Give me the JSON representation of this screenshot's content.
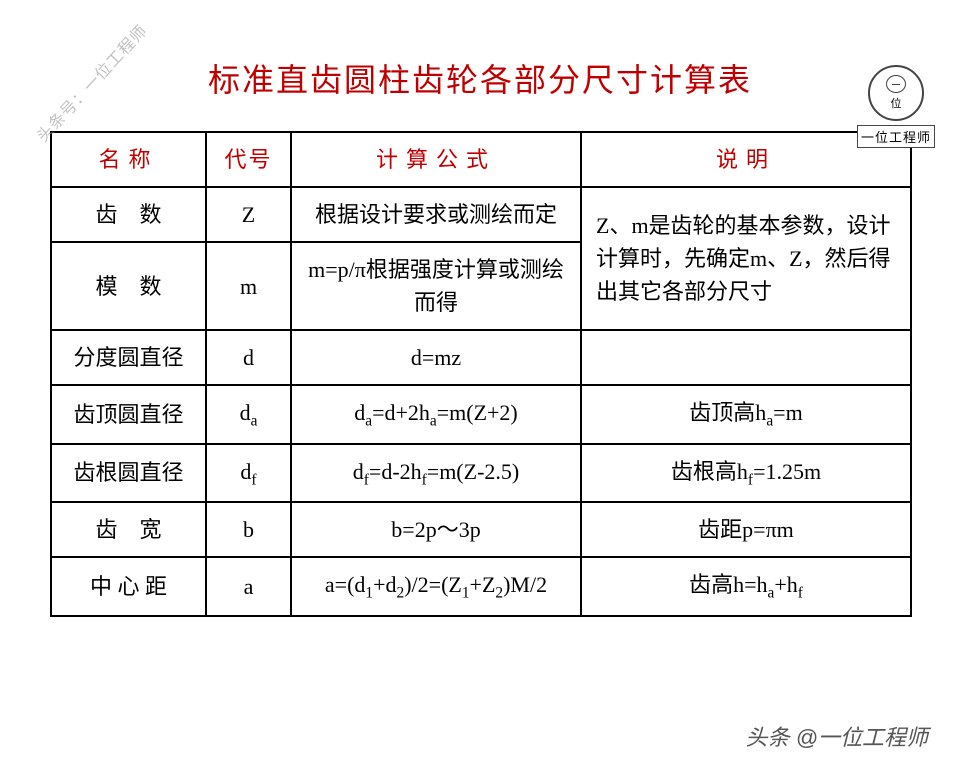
{
  "title": "标准直齿圆柱齿轮各部分尺寸计算表",
  "watermark_top": "头条号：一位工程师",
  "logo_label": "一位工程师",
  "footer_credit": "头条 @一位工程师",
  "table": {
    "headers": [
      "名称",
      "代号",
      "计算公式",
      "说明"
    ],
    "col_widths": [
      "155px",
      "85px",
      "290px",
      "330px"
    ],
    "border_color": "#000000",
    "header_color": "#c00000",
    "font_size": 22,
    "rows": [
      {
        "name": "齿数",
        "name_spaced": true,
        "symbol": "Z",
        "formula_html": "根据设计要求或测绘而定",
        "desc_html": "Z、m是齿轮的基本参数，设计计算时，先确定m、Z，然后得出其它各部分尺寸",
        "desc_rowspan": 2
      },
      {
        "name": "模数",
        "name_spaced": true,
        "symbol": "m",
        "formula_html": "m=p/π根据强度计算或测绘而得"
      },
      {
        "name": "分度圆直径",
        "name_spaced": false,
        "symbol": "d",
        "formula_html": "d=mz",
        "desc_html": ""
      },
      {
        "name": "齿顶圆直径",
        "name_spaced": false,
        "symbol_html": "d<sub>a</sub>",
        "formula_html": "d<sub>a</sub>=d+2h<sub>a</sub>=m(Z+2)",
        "desc_html": "齿顶高h<sub>a</sub>=m",
        "desc_center": true
      },
      {
        "name": "齿根圆直径",
        "name_spaced": false,
        "symbol_html": "d<sub>f</sub>",
        "formula_html": "d<sub>f</sub>=d-2h<sub>f</sub>=m(Z-2.5)",
        "desc_html": "齿根高h<sub>f</sub>=1.25m",
        "desc_center": true
      },
      {
        "name": "齿宽",
        "name_spaced": true,
        "symbol": "b",
        "formula_html": "b=2p～3p",
        "desc_html": "齿距p=πm",
        "desc_center": true
      },
      {
        "name": "中心距",
        "name_spaced": false,
        "name_mid": true,
        "symbol": "a",
        "formula_html": "a=(d<sub>1</sub>+d<sub>2</sub>)/2=(Z<sub>1</sub>+Z<sub>2</sub>)M/2",
        "desc_html": "齿高h=h<sub>a</sub>+h<sub>f</sub>",
        "desc_center": true
      }
    ]
  },
  "colors": {
    "title": "#c00000",
    "text": "#000000",
    "watermark": "#999999",
    "background": "#ffffff"
  }
}
